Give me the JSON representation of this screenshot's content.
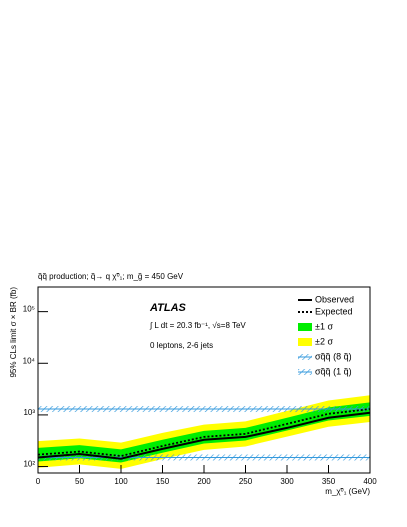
{
  "chart_data": {
    "type": "line",
    "title": "q̃q̃ production; q̃→ q χ̃⁰₁; m_g̃ = 450 GeV",
    "annotations": [
      "ATLAS",
      "∫ L dt = 20.3 fb⁻¹,  √s=8 TeV",
      "0 leptons, 2-6 jets"
    ],
    "x_label": "m_χ̃⁰₁ (GeV)",
    "y_label": "95% CLs limit σ × BR (fb)",
    "log_y": true,
    "xlim": [
      0,
      400
    ],
    "xticks": [
      0,
      50,
      100,
      150,
      200,
      250,
      300,
      350,
      400
    ],
    "ylim": [
      75,
      300000
    ],
    "yticks": [
      {
        "value": 100,
        "label": "10²"
      },
      {
        "value": 1000,
        "label": "10³"
      },
      {
        "value": 10000,
        "label": "10⁴"
      },
      {
        "value": 100000,
        "label": "10⁵"
      }
    ],
    "x": [
      0,
      50,
      100,
      150,
      200,
      250,
      300,
      350,
      400
    ],
    "bands": [
      {
        "name": "±2 σ",
        "color": "#ffff00",
        "upper": [
          310,
          350,
          290,
          450,
          650,
          750,
          1200,
          1900,
          2400
        ],
        "lower": [
          95,
          110,
          90,
          140,
          210,
          245,
          380,
          590,
          730
        ]
      },
      {
        "name": "±1 σ",
        "color": "#00ee00",
        "upper": [
          230,
          260,
          215,
          330,
          490,
          560,
          880,
          1400,
          1750
        ],
        "lower": [
          125,
          145,
          120,
          185,
          280,
          320,
          500,
          780,
          960
        ]
      }
    ],
    "series": [
      {
        "name": "Observed",
        "color": "#000000",
        "style": "solid",
        "values": [
          150,
          175,
          142,
          220,
          330,
          375,
          560,
          880,
          1100
        ]
      },
      {
        "name": "Expected",
        "color": "#000000",
        "style": "dotted",
        "values": [
          170,
          195,
          160,
          250,
          375,
          430,
          670,
          1050,
          1300
        ]
      }
    ],
    "reference_lines": [
      {
        "name": "σq̃q̃ (8 q̃)",
        "color": "#3399dd",
        "value": 1300
      },
      {
        "name": "σq̃q̃ (1 q̃)",
        "color": "#3399dd",
        "value": 150
      }
    ],
    "legend": "upper right"
  }
}
